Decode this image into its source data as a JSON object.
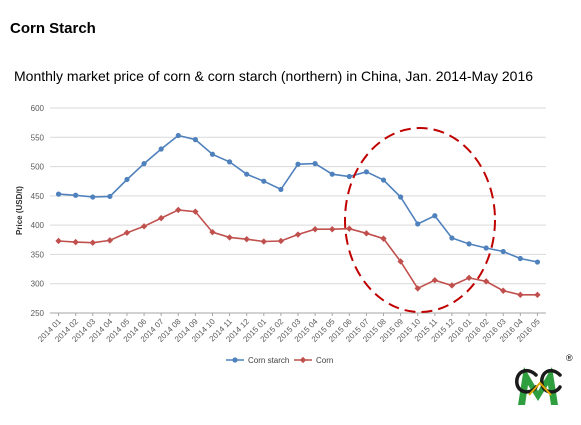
{
  "page": {
    "heading": "Corn Starch",
    "logo_registered_mark": "®"
  },
  "chart_data": {
    "type": "line",
    "title": "Monthly market price of corn & corn starch (northern) in China, Jan. 2014-May 2016",
    "xlabel": "",
    "ylabel": "Price (USD/t)",
    "ylim": [
      250,
      600
    ],
    "yticks": [
      250,
      300,
      350,
      400,
      450,
      500,
      550,
      600
    ],
    "grid": true,
    "legend_position": "bottom",
    "categories": [
      "2014 01",
      "2014 02",
      "2014 03",
      "2014 04",
      "2014 05",
      "2014 06",
      "2014 07",
      "2014 08",
      "2014 09",
      "2014 10",
      "2014 11",
      "2014 12",
      "2015 01",
      "2015 02",
      "2015 03",
      "2015 04",
      "2015 05",
      "2015 06",
      "2015 07",
      "2015 08",
      "2015 09",
      "2015 10",
      "2015 11",
      "2015 12",
      "2016 01",
      "2016 02",
      "2016 03",
      "2016 04",
      "2016 05"
    ],
    "series": [
      {
        "name": "Corn starch",
        "color": "#4F81BD",
        "marker": "circle",
        "values": [
          453,
          451,
          448,
          449,
          478,
          505,
          530,
          553,
          546,
          521,
          508,
          487,
          475,
          461,
          504,
          505,
          487,
          483,
          491,
          477,
          448,
          402,
          416,
          378,
          368,
          361,
          355,
          343,
          337
        ]
      },
      {
        "name": "Corn",
        "color": "#C0504D",
        "marker": "diamond",
        "values": [
          373,
          371,
          370,
          374,
          387,
          398,
          412,
          426,
          423,
          388,
          379,
          376,
          372,
          373,
          384,
          393,
          393,
          394,
          386,
          377,
          338,
          292,
          306,
          297,
          310,
          304,
          288,
          281,
          281
        ]
      }
    ],
    "annotation": {
      "shape": "dashed-ellipse",
      "color": "#C00000"
    }
  }
}
